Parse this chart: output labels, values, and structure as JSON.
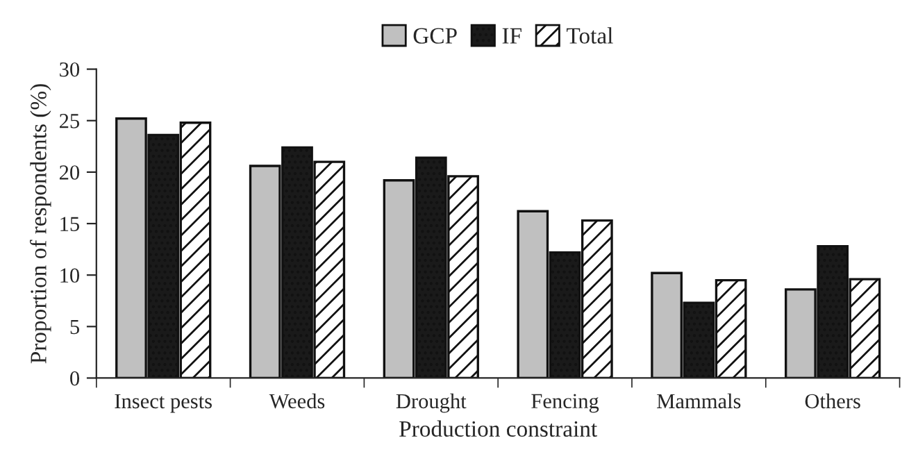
{
  "chart_data": {
    "type": "bar",
    "xlabel": "Production constraint",
    "ylabel": "Proportion of respondents (%)",
    "categories": [
      "Insect pests",
      "Weeds",
      "Drought",
      "Fencing",
      "Mammals",
      "Others"
    ],
    "series": [
      {
        "name": "GCP",
        "color": "#c0c0c0",
        "values": [
          25.2,
          20.6,
          19.2,
          16.2,
          10.2,
          8.6
        ]
      },
      {
        "name": "IF",
        "color": "#1a1a1a",
        "values": [
          23.6,
          22.4,
          21.4,
          12.2,
          7.3,
          12.8
        ]
      },
      {
        "name": "Total",
        "color": "#111111",
        "values": [
          24.8,
          21.0,
          19.6,
          15.3,
          9.5,
          9.6
        ]
      }
    ],
    "ylim": [
      0,
      30
    ],
    "yticks": [
      0,
      5,
      10,
      15,
      20,
      25,
      30
    ],
    "grid": false,
    "legend": "top"
  }
}
